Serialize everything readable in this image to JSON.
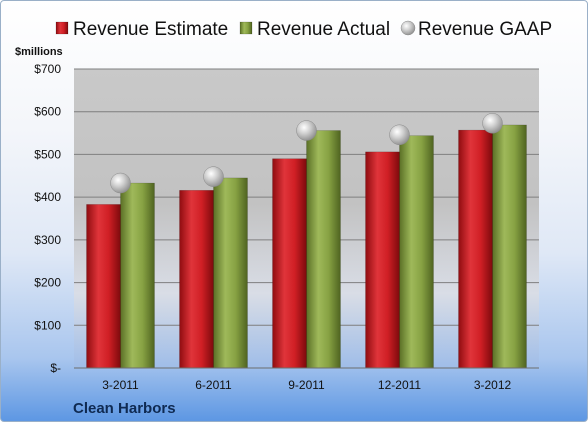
{
  "chart_data": {
    "type": "bar",
    "unit_label": "$millions",
    "company": "Clean Harbors",
    "categories": [
      "3-2011",
      "6-2011",
      "9-2011",
      "12-2011",
      "3-2012"
    ],
    "series": [
      {
        "name": "Revenue Estimate",
        "kind": "bar",
        "color": "#c8161d",
        "values": [
          383,
          416,
          490,
          506,
          557
        ]
      },
      {
        "name": "Revenue Actual",
        "kind": "bar",
        "color": "#7f9a3a",
        "values": [
          433,
          445,
          556,
          544,
          569
        ]
      },
      {
        "name": "Revenue GAAP",
        "kind": "marker",
        "color": "#b8b8b8",
        "values": [
          433,
          448,
          556,
          546,
          573
        ]
      }
    ],
    "yticks": [
      0,
      100,
      200,
      300,
      400,
      500,
      600,
      700
    ],
    "ytick_labels": [
      "$-",
      "$100",
      "$200",
      "$300",
      "$400",
      "$500",
      "$600",
      "$700"
    ],
    "ylim": [
      0,
      700
    ],
    "grid": true,
    "legend_position": "top"
  }
}
